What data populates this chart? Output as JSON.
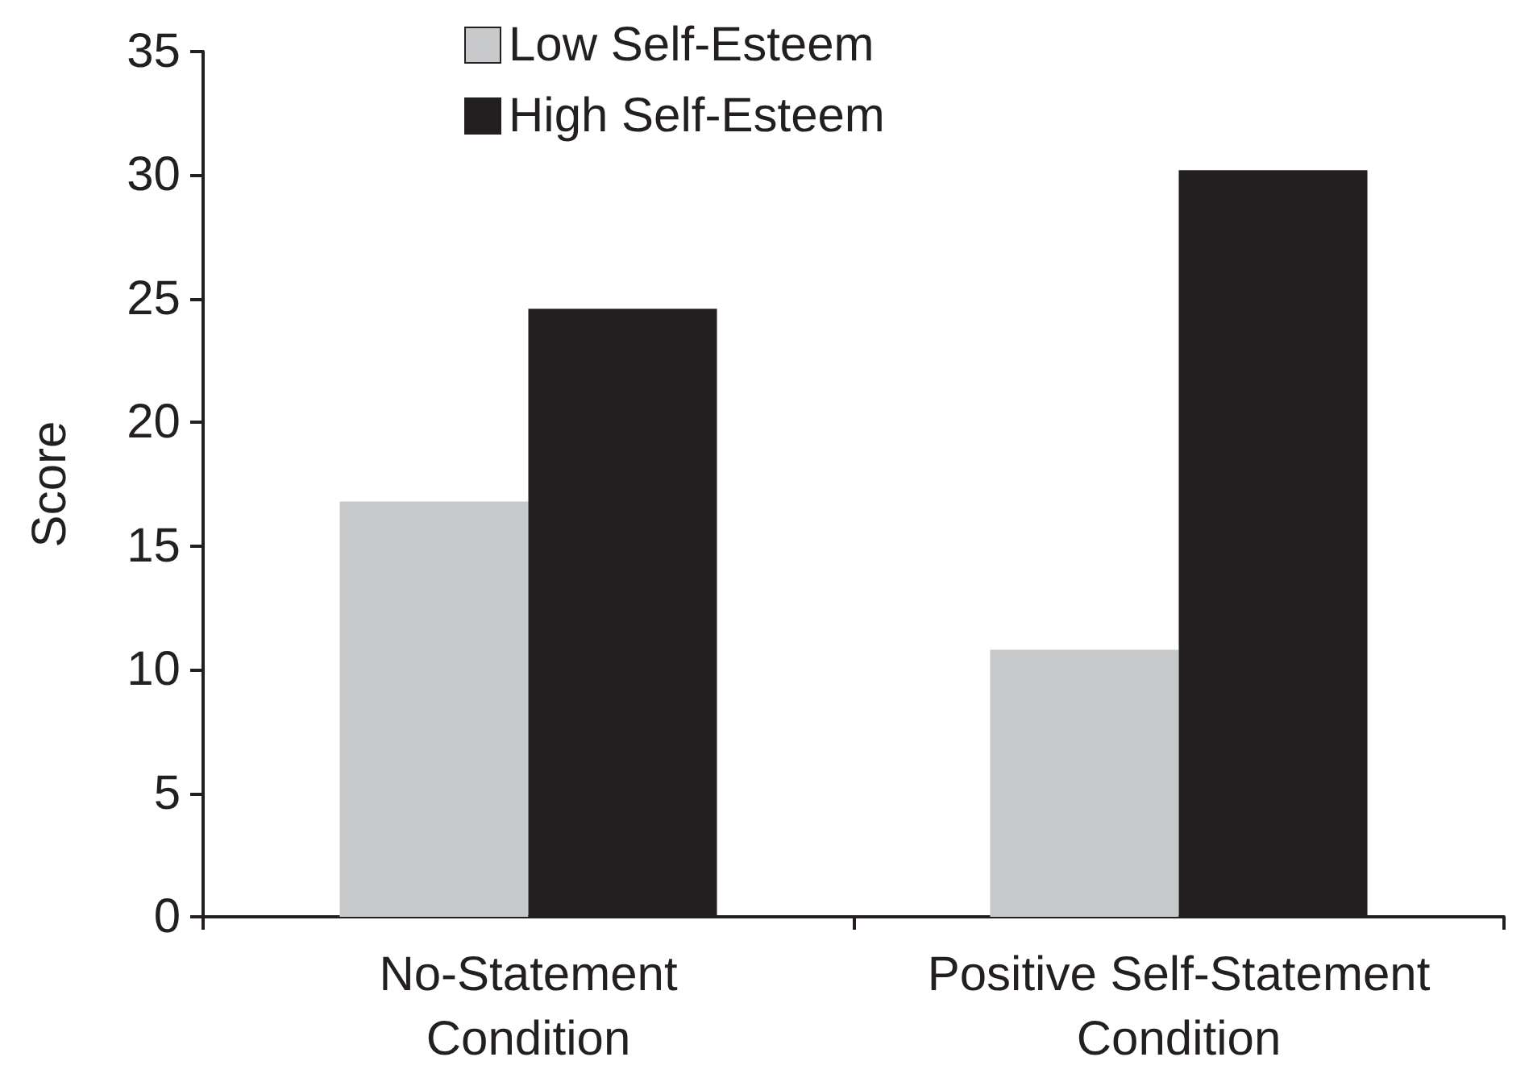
{
  "chart_data": {
    "type": "bar",
    "ylabel": "Score",
    "categories": [
      "No-Statement\nCondition",
      "Positive Self-Statement\nCondition"
    ],
    "series": [
      {
        "name": "Low Self-Esteem",
        "color": "#c8c9cb",
        "values": [
          16.8,
          10.8
        ]
      },
      {
        "name": "High Self-Esteem",
        "color": "#231f20",
        "values": [
          24.6,
          30.2
        ]
      }
    ],
    "ylim": [
      0,
      35
    ],
    "yticks": [
      0,
      5,
      10,
      15,
      20,
      25,
      30,
      35
    ],
    "grid": false,
    "legend": "top"
  }
}
